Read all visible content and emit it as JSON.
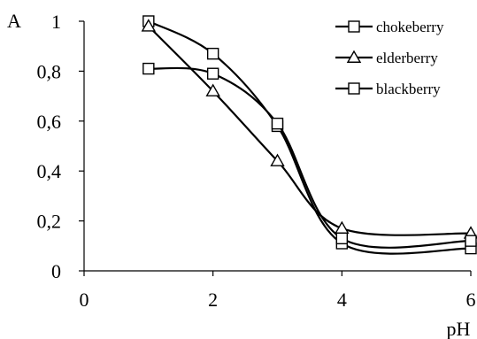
{
  "chart_data": {
    "type": "line",
    "xlabel": "pH",
    "ylabel": "A",
    "xlim": [
      0,
      6
    ],
    "ylim": [
      0,
      1
    ],
    "x_ticks": [
      "0",
      "2",
      "4",
      "6"
    ],
    "y_ticks": [
      "0",
      "0,2",
      "0,4",
      "0,6",
      "0,8",
      "1"
    ],
    "grid": false,
    "legend_position": "top-right",
    "series": [
      {
        "name": "chokeberry",
        "marker": "square",
        "x": [
          1,
          2,
          3,
          4,
          6
        ],
        "y": [
          1.0,
          0.87,
          0.58,
          0.11,
          0.09
        ]
      },
      {
        "name": "elderberry",
        "marker": "triangle",
        "x": [
          1,
          2,
          3,
          4,
          6
        ],
        "y": [
          0.98,
          0.72,
          0.44,
          0.17,
          0.15
        ]
      },
      {
        "name": "blackberry",
        "marker": "square",
        "x": [
          1,
          2,
          3,
          4,
          6
        ],
        "y": [
          0.81,
          0.79,
          0.59,
          0.13,
          0.12
        ]
      }
    ]
  }
}
